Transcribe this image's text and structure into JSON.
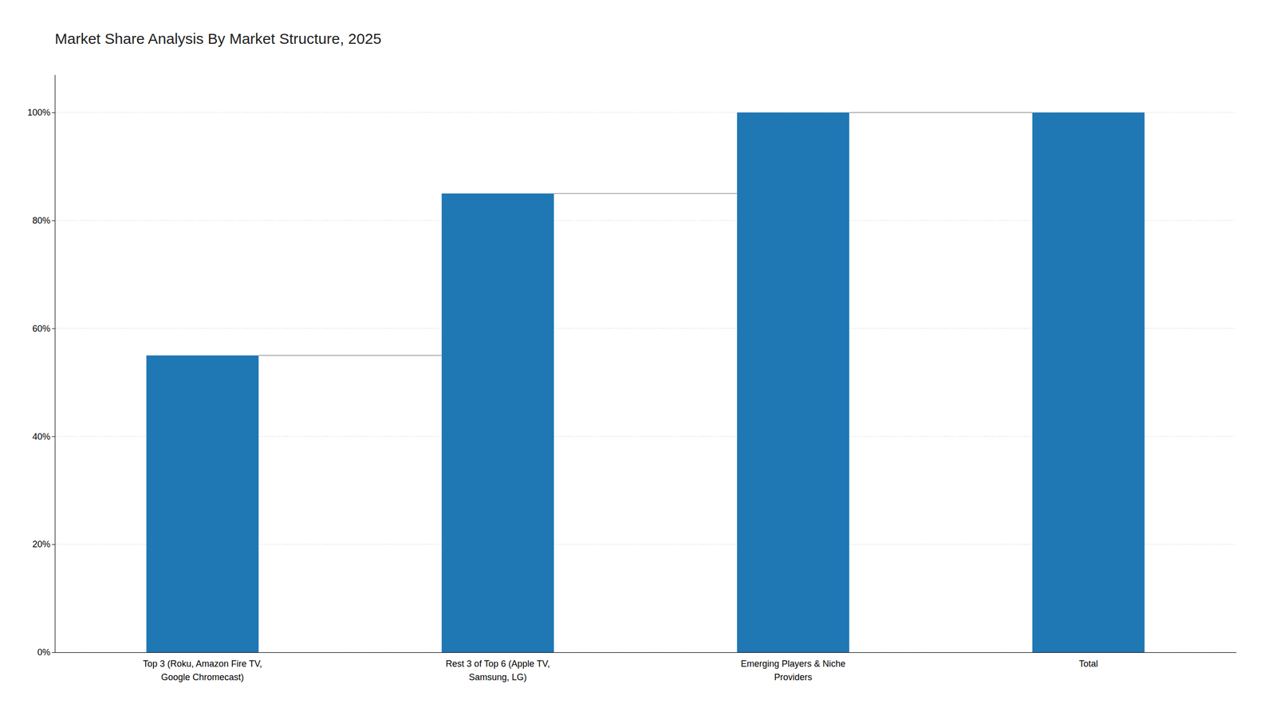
{
  "chart_data": {
    "type": "bar",
    "title": "Market Share Analysis By Market Structure, 2025",
    "categories": [
      "Top 3 (Roku, Amazon Fire TV,\nGoogle Chromecast)",
      "Rest 3 of Top 6 (Apple TV,\nSamsung, LG)",
      "Emerging Players & Niche\nProviders",
      "Total"
    ],
    "values": [
      55,
      85,
      100,
      100
    ],
    "color": "#1f77b4",
    "ylim": [
      0,
      107
    ],
    "yticks": [
      {
        "value": 0,
        "label": "0%"
      },
      {
        "value": 20,
        "label": "20%"
      },
      {
        "value": 40,
        "label": "40%"
      },
      {
        "value": 60,
        "label": "60%"
      },
      {
        "value": 80,
        "label": "80%"
      },
      {
        "value": 100,
        "label": "100%"
      }
    ],
    "grid": true
  }
}
